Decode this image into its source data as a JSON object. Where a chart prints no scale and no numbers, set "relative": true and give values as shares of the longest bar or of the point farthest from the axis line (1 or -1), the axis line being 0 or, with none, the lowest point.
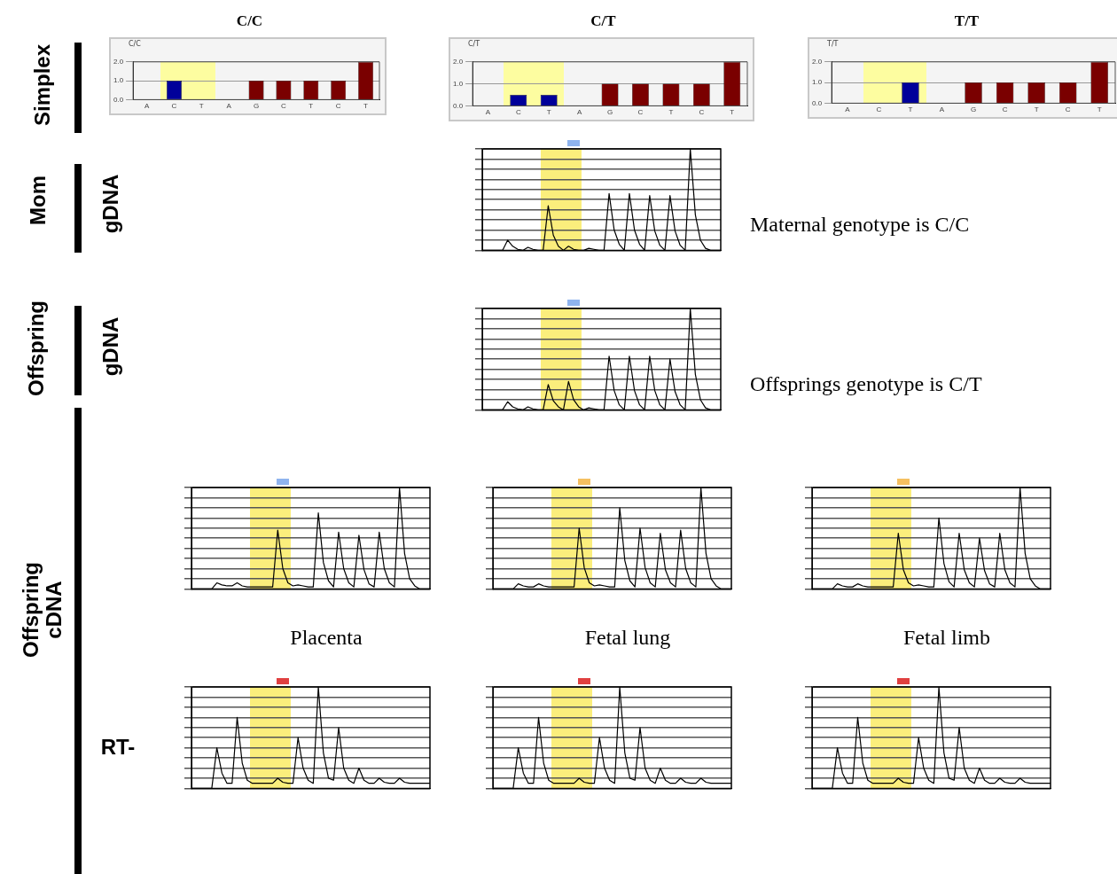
{
  "chart_data": [
    {
      "type": "other",
      "annotations": [
        "Simplex",
        "Mom",
        "gDNA",
        "Offspring",
        "gDNA",
        "Offspring cDNA",
        "RT-"
      ]
    },
    {
      "type": "bar",
      "title": "C/C",
      "subtitle": "C/C",
      "categories": [
        "A",
        "C",
        "T",
        "A",
        "G",
        "C",
        "T",
        "C",
        "T"
      ],
      "values": [
        0,
        1,
        0,
        0,
        1,
        1,
        1,
        1,
        2
      ],
      "colors": [
        "#7a0000",
        "#00009a",
        "#7a0000",
        "#7a0000",
        "#7a0000",
        "#7a0000",
        "#7a0000",
        "#7a0000",
        "#7a0000"
      ],
      "ylim": [
        0,
        2
      ],
      "yticks": [
        {
          "value": 0,
          "label": "0.0"
        },
        {
          "value": 1,
          "label": "1.0"
        },
        {
          "value": 2,
          "label": "2.0"
        }
      ],
      "grid": "y"
    },
    {
      "type": "bar",
      "title": "C/T",
      "subtitle": "C/T",
      "categories": [
        "A",
        "C",
        "T",
        "A",
        "G",
        "C",
        "T",
        "C",
        "T"
      ],
      "values": [
        0,
        0.5,
        0.5,
        0,
        1,
        1,
        1,
        1,
        2
      ],
      "colors": [
        "#7a0000",
        "#00009a",
        "#00009a",
        "#7a0000",
        "#7a0000",
        "#7a0000",
        "#7a0000",
        "#7a0000",
        "#7a0000"
      ],
      "ylim": [
        0,
        2
      ],
      "yticks": [
        {
          "value": 0,
          "label": "0.0"
        },
        {
          "value": 1,
          "label": "1.0"
        },
        {
          "value": 2,
          "label": "2.0"
        }
      ],
      "grid": "y"
    },
    {
      "type": "bar",
      "title": "T/T",
      "subtitle": "T/T",
      "categories": [
        "A",
        "C",
        "T",
        "A",
        "G",
        "C",
        "T",
        "C",
        "T"
      ],
      "values": [
        0,
        0,
        1,
        0,
        1,
        1,
        1,
        1,
        2
      ],
      "colors": [
        "#7a0000",
        "#00009a",
        "#00009a",
        "#7a0000",
        "#7a0000",
        "#7a0000",
        "#7a0000",
        "#7a0000",
        "#7a0000"
      ],
      "ylim": [
        0,
        2
      ],
      "yticks": [
        {
          "value": 0,
          "label": "0.0"
        },
        {
          "value": 1,
          "label": "1.0"
        },
        {
          "value": 2,
          "label": "2.0"
        }
      ],
      "grid": "y"
    },
    {
      "type": "line",
      "relative": true,
      "grid": "y",
      "marker": "none",
      "annotations": [
        "Maternal genotype is C/C"
      ],
      "categories": [
        null,
        null,
        null,
        null,
        null,
        null,
        null,
        null,
        null,
        null,
        null,
        null,
        null,
        null,
        null,
        null,
        null,
        null,
        null,
        null,
        null,
        null,
        null,
        null,
        null,
        null,
        null,
        null,
        null,
        null,
        null,
        null,
        null,
        null,
        null,
        null,
        null,
        null,
        null,
        null,
        null,
        null,
        null,
        null,
        null,
        null,
        null,
        null
      ],
      "series": [
        {
          "color": "#000000",
          "values": [
            0,
            0,
            0,
            0,
            0,
            0.1,
            0.04,
            0.01,
            0,
            0.03,
            0.01,
            0,
            0,
            0.44,
            0.15,
            0.04,
            0,
            0.04,
            0.01,
            0,
            0,
            0.02,
            0.01,
            0,
            0,
            0.56,
            0.2,
            0.06,
            0,
            0.56,
            0.2,
            0.06,
            0,
            0.54,
            0.19,
            0.05,
            0,
            0.54,
            0.19,
            0.05,
            0,
            1,
            0.35,
            0.1,
            0.02,
            0,
            0,
            0
          ]
        }
      ]
    },
    {
      "type": "line",
      "relative": true,
      "grid": "y",
      "marker": "none",
      "annotations": [
        "Offsprings genotype is C/T"
      ],
      "categories": [
        null,
        null,
        null,
        null,
        null,
        null,
        null,
        null,
        null,
        null,
        null,
        null,
        null,
        null,
        null,
        null,
        null,
        null,
        null,
        null,
        null,
        null,
        null,
        null,
        null,
        null,
        null,
        null,
        null,
        null,
        null,
        null,
        null,
        null,
        null,
        null,
        null,
        null,
        null,
        null,
        null,
        null,
        null,
        null,
        null,
        null,
        null,
        null
      ],
      "series": [
        {
          "color": "#000000",
          "values": [
            0,
            0,
            0,
            0,
            0,
            0.08,
            0.03,
            0.01,
            0,
            0.03,
            0.01,
            0,
            0,
            0.25,
            0.09,
            0.03,
            0,
            0.28,
            0.1,
            0.03,
            0,
            0.02,
            0.01,
            0,
            0,
            0.53,
            0.19,
            0.05,
            0,
            0.53,
            0.19,
            0.05,
            0,
            0.53,
            0.19,
            0.05,
            0,
            0.5,
            0.18,
            0.05,
            0,
            1,
            0.35,
            0.1,
            0.02,
            0,
            0,
            0
          ]
        }
      ]
    },
    {
      "type": "line",
      "relative": true,
      "grid": "y",
      "marker": "none",
      "xlabel": "Placenta",
      "categories": [
        null,
        null,
        null,
        null,
        null,
        null,
        null,
        null,
        null,
        null,
        null,
        null,
        null,
        null,
        null,
        null,
        null,
        null,
        null,
        null,
        null,
        null,
        null,
        null,
        null,
        null,
        null,
        null,
        null,
        null,
        null,
        null,
        null,
        null,
        null,
        null,
        null,
        null,
        null,
        null,
        null,
        null,
        null,
        null,
        null,
        null,
        null,
        null
      ],
      "series": [
        {
          "color": "#000000",
          "values": [
            0,
            0,
            0,
            0,
            0,
            0.06,
            0.04,
            0.03,
            0.03,
            0.06,
            0.03,
            0.02,
            0.02,
            0.02,
            0.02,
            0.02,
            0.02,
            0.58,
            0.2,
            0.06,
            0.03,
            0.04,
            0.03,
            0.02,
            0.02,
            0.75,
            0.26,
            0.08,
            0.02,
            0.56,
            0.2,
            0.06,
            0.02,
            0.53,
            0.19,
            0.05,
            0.02,
            0.56,
            0.2,
            0.06,
            0.02,
            1,
            0.35,
            0.1,
            0.03,
            0,
            0,
            0
          ]
        }
      ]
    },
    {
      "type": "line",
      "relative": true,
      "grid": "y",
      "marker": "none",
      "xlabel": "Fetal lung",
      "categories": [
        null,
        null,
        null,
        null,
        null,
        null,
        null,
        null,
        null,
        null,
        null,
        null,
        null,
        null,
        null,
        null,
        null,
        null,
        null,
        null,
        null,
        null,
        null,
        null,
        null,
        null,
        null,
        null,
        null,
        null,
        null,
        null,
        null,
        null,
        null,
        null,
        null,
        null,
        null,
        null,
        null,
        null,
        null,
        null,
        null,
        null,
        null,
        null
      ],
      "series": [
        {
          "color": "#000000",
          "values": [
            0,
            0,
            0,
            0,
            0,
            0.05,
            0.03,
            0.02,
            0.02,
            0.05,
            0.03,
            0.02,
            0.02,
            0.02,
            0.02,
            0.02,
            0.02,
            0.6,
            0.21,
            0.06,
            0.03,
            0.04,
            0.03,
            0.02,
            0.02,
            0.8,
            0.28,
            0.08,
            0.02,
            0.6,
            0.21,
            0.06,
            0.02,
            0.55,
            0.19,
            0.06,
            0.02,
            0.58,
            0.2,
            0.06,
            0.02,
            1,
            0.35,
            0.1,
            0.03,
            0,
            0,
            0
          ]
        }
      ]
    },
    {
      "type": "line",
      "relative": true,
      "grid": "y",
      "marker": "none",
      "xlabel": "Fetal limb",
      "categories": [
        null,
        null,
        null,
        null,
        null,
        null,
        null,
        null,
        null,
        null,
        null,
        null,
        null,
        null,
        null,
        null,
        null,
        null,
        null,
        null,
        null,
        null,
        null,
        null,
        null,
        null,
        null,
        null,
        null,
        null,
        null,
        null,
        null,
        null,
        null,
        null,
        null,
        null,
        null,
        null,
        null,
        null,
        null,
        null,
        null,
        null,
        null,
        null
      ],
      "series": [
        {
          "color": "#000000",
          "values": [
            0,
            0,
            0,
            0,
            0,
            0.05,
            0.03,
            0.02,
            0.02,
            0.05,
            0.03,
            0.02,
            0.02,
            0.02,
            0.02,
            0.02,
            0.02,
            0.55,
            0.19,
            0.06,
            0.03,
            0.04,
            0.03,
            0.02,
            0.02,
            0.7,
            0.25,
            0.07,
            0.02,
            0.55,
            0.19,
            0.06,
            0.02,
            0.5,
            0.18,
            0.05,
            0.02,
            0.55,
            0.19,
            0.06,
            0.02,
            1,
            0.35,
            0.1,
            0.03,
            0,
            0,
            0
          ]
        }
      ]
    },
    {
      "type": "line",
      "relative": true,
      "grid": "y",
      "marker": "none",
      "categories": [
        null,
        null,
        null,
        null,
        null,
        null,
        null,
        null,
        null,
        null,
        null,
        null,
        null,
        null,
        null,
        null,
        null,
        null,
        null,
        null,
        null,
        null,
        null,
        null,
        null,
        null,
        null,
        null,
        null,
        null,
        null,
        null,
        null,
        null,
        null,
        null,
        null,
        null,
        null,
        null,
        null,
        null,
        null,
        null,
        null,
        null,
        null,
        null
      ],
      "series": [
        {
          "color": "#000000",
          "values": [
            0,
            0,
            0,
            0,
            0,
            0.4,
            0.15,
            0.05,
            0.05,
            0.7,
            0.25,
            0.08,
            0.05,
            0.05,
            0.05,
            0.05,
            0.05,
            0.1,
            0.06,
            0.05,
            0.05,
            0.5,
            0.2,
            0.08,
            0.05,
            1,
            0.35,
            0.1,
            0.08,
            0.6,
            0.2,
            0.08,
            0.05,
            0.2,
            0.08,
            0.05,
            0.05,
            0.1,
            0.06,
            0.05,
            0.05,
            0.1,
            0.06,
            0.05,
            0.05,
            0.05,
            0.05,
            0.05
          ]
        }
      ]
    },
    {
      "type": "line",
      "relative": true,
      "grid": "y",
      "marker": "none",
      "categories": [
        null,
        null,
        null,
        null,
        null,
        null,
        null,
        null,
        null,
        null,
        null,
        null,
        null,
        null,
        null,
        null,
        null,
        null,
        null,
        null,
        null,
        null,
        null,
        null,
        null,
        null,
        null,
        null,
        null,
        null,
        null,
        null,
        null,
        null,
        null,
        null,
        null,
        null,
        null,
        null,
        null,
        null,
        null,
        null,
        null,
        null,
        null,
        null
      ],
      "series": [
        {
          "color": "#000000",
          "values": [
            0,
            0,
            0,
            0,
            0,
            0.4,
            0.15,
            0.05,
            0.05,
            0.7,
            0.25,
            0.08,
            0.05,
            0.05,
            0.05,
            0.05,
            0.05,
            0.1,
            0.06,
            0.05,
            0.05,
            0.5,
            0.2,
            0.08,
            0.05,
            1,
            0.35,
            0.1,
            0.08,
            0.6,
            0.2,
            0.08,
            0.05,
            0.2,
            0.08,
            0.05,
            0.05,
            0.1,
            0.06,
            0.05,
            0.05,
            0.1,
            0.06,
            0.05,
            0.05,
            0.05,
            0.05,
            0.05
          ]
        }
      ]
    },
    {
      "type": "line",
      "relative": true,
      "grid": "y",
      "marker": "none",
      "categories": [
        null,
        null,
        null,
        null,
        null,
        null,
        null,
        null,
        null,
        null,
        null,
        null,
        null,
        null,
        null,
        null,
        null,
        null,
        null,
        null,
        null,
        null,
        null,
        null,
        null,
        null,
        null,
        null,
        null,
        null,
        null,
        null,
        null,
        null,
        null,
        null,
        null,
        null,
        null,
        null,
        null,
        null,
        null,
        null,
        null,
        null,
        null,
        null
      ],
      "series": [
        {
          "color": "#000000",
          "values": [
            0,
            0,
            0,
            0,
            0,
            0.4,
            0.15,
            0.05,
            0.05,
            0.7,
            0.25,
            0.08,
            0.05,
            0.05,
            0.05,
            0.05,
            0.05,
            0.1,
            0.06,
            0.05,
            0.05,
            0.5,
            0.2,
            0.08,
            0.05,
            1,
            0.35,
            0.1,
            0.08,
            0.6,
            0.2,
            0.08,
            0.05,
            0.2,
            0.08,
            0.05,
            0.05,
            0.1,
            0.06,
            0.05,
            0.05,
            0.1,
            0.06,
            0.05,
            0.05,
            0.05,
            0.05,
            0.05
          ]
        }
      ]
    }
  ]
}
